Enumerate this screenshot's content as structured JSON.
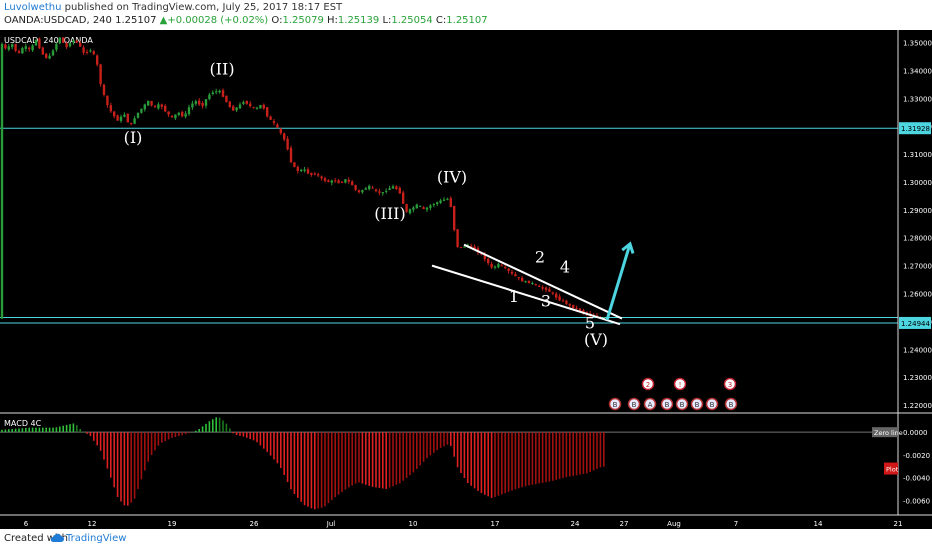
{
  "header": {
    "user": "Luvolwethu",
    "published": " published on TradingView.com, July 25, 2017 18:17 EST",
    "symbol_line": "OANDA:USDCAD, 240 ",
    "last": "1.25107",
    "change": "+0.00028 (+0.02%)",
    "ohlc": [
      "O:",
      "1.25079",
      " H:",
      "1.25139",
      " L:",
      "1.25054",
      " C:",
      "1.25107"
    ]
  },
  "footer": {
    "created_with": "Created with",
    "brand": "TradingView"
  },
  "colors": {
    "background": "#000000",
    "bull": "#2a9b3a",
    "bear": "#c8201a",
    "hline": "#4dd6e0",
    "arrow": "#4dd6e0",
    "text": "#ffffff"
  },
  "chart_data": [
    {
      "type": "candlestick",
      "title": "USDCAD, 240, OANDA",
      "xticks": [
        "6",
        "12",
        "19",
        "26",
        "Jul",
        "10",
        "17",
        "24",
        "27",
        "Aug",
        "7",
        "14",
        "21"
      ],
      "ylim": [
        1.2175,
        1.3545
      ],
      "yticks": [
        "1.35000",
        "1.34000",
        "1.33000",
        "1.32000",
        "1.31000",
        "1.30000",
        "1.29000",
        "1.28000",
        "1.27000",
        "1.26000",
        "1.25000",
        "1.24000",
        "1.23000",
        "1.22000"
      ],
      "price_path": [
        [
          0,
          1.3505
        ],
        [
          6,
          1.3475
        ],
        [
          12,
          1.3495
        ],
        [
          18,
          1.3455
        ],
        [
          24,
          1.349
        ],
        [
          30,
          1.3472
        ],
        [
          36,
          1.351
        ],
        [
          42,
          1.346
        ],
        [
          48,
          1.344
        ],
        [
          54,
          1.348
        ],
        [
          60,
          1.352
        ],
        [
          66,
          1.348
        ],
        [
          72,
          1.351
        ],
        [
          78,
          1.3498
        ],
        [
          84,
          1.346
        ],
        [
          90,
          1.3475
        ],
        [
          96,
          1.3445
        ],
        [
          100,
          1.336
        ],
        [
          106,
          1.3285
        ],
        [
          112,
          1.3245
        ],
        [
          118,
          1.322
        ],
        [
          124,
          1.3245
        ],
        [
          130,
          1.3198
        ],
        [
          136,
          1.324
        ],
        [
          142,
          1.3265
        ],
        [
          148,
          1.329
        ],
        [
          154,
          1.3265
        ],
        [
          160,
          1.328
        ],
        [
          166,
          1.325
        ],
        [
          172,
          1.323
        ],
        [
          178,
          1.325
        ],
        [
          184,
          1.3232
        ],
        [
          190,
          1.3275
        ],
        [
          196,
          1.329
        ],
        [
          202,
          1.327
        ],
        [
          208,
          1.331
        ],
        [
          214,
          1.3325
        ],
        [
          220,
          1.3325
        ],
        [
          226,
          1.329
        ],
        [
          232,
          1.3255
        ],
        [
          238,
          1.327
        ],
        [
          244,
          1.329
        ],
        [
          250,
          1.3272
        ],
        [
          256,
          1.3262
        ],
        [
          262,
          1.328
        ],
        [
          268,
          1.323
        ],
        [
          274,
          1.321
        ],
        [
          280,
          1.318
        ],
        [
          286,
          1.314
        ],
        [
          292,
          1.306
        ],
        [
          298,
          1.304
        ],
        [
          304,
          1.3045
        ],
        [
          310,
          1.3025
        ],
        [
          316,
          1.303
        ],
        [
          322,
          1.301
        ],
        [
          328,
          1.3
        ],
        [
          334,
          1.3005
        ],
        [
          340,
          1.2995
        ],
        [
          346,
          1.301
        ],
        [
          352,
          1.299
        ],
        [
          358,
          1.296
        ],
        [
          364,
          1.2975
        ],
        [
          370,
          1.2985
        ],
        [
          376,
          1.2965
        ],
        [
          382,
          1.296
        ],
        [
          388,
          1.2975
        ],
        [
          394,
          1.2985
        ],
        [
          400,
          1.296
        ],
        [
          406,
          1.289
        ],
        [
          412,
          1.2905
        ],
        [
          418,
          1.292
        ],
        [
          424,
          1.29
        ],
        [
          430,
          1.2915
        ],
        [
          436,
          1.2925
        ],
        [
          442,
          1.2935
        ],
        [
          448,
          1.294
        ],
        [
          452,
          1.29
        ],
        [
          456,
          1.277
        ],
        [
          462,
          1.2765
        ],
        [
          468,
          1.2775
        ],
        [
          474,
          1.276
        ],
        [
          480,
          1.2745
        ],
        [
          486,
          1.272
        ],
        [
          492,
          1.269
        ],
        [
          498,
          1.2705
        ],
        [
          504,
          1.2695
        ],
        [
          510,
          1.2675
        ],
        [
          516,
          1.266
        ],
        [
          522,
          1.2645
        ],
        [
          528,
          1.264
        ],
        [
          534,
          1.2635
        ],
        [
          540,
          1.262
        ],
        [
          546,
          1.2615
        ],
        [
          552,
          1.26
        ],
        [
          558,
          1.258
        ],
        [
          564,
          1.257
        ],
        [
          570,
          1.2555
        ],
        [
          576,
          1.2545
        ],
        [
          582,
          1.2535
        ],
        [
          588,
          1.2525
        ],
        [
          594,
          1.2518
        ],
        [
          600,
          1.2512
        ],
        [
          606,
          1.251
        ]
      ],
      "hlines": [
        {
          "value": 1.31928,
          "label": "1.31928"
        },
        {
          "value": 1.2514,
          "label": ""
        },
        {
          "value": 1.24944,
          "label": "1.24944"
        }
      ],
      "annotations": [
        {
          "text": "(I)",
          "at": [
            133,
            1.314
          ]
        },
        {
          "text": "(II)",
          "at": [
            222,
            1.3385
          ]
        },
        {
          "text": "(III)",
          "at": [
            390,
            1.2868
          ]
        },
        {
          "text": "(IV)",
          "at": [
            452,
            1.2998
          ]
        },
        {
          "text": "(V)",
          "at": [
            596,
            1.2416
          ]
        },
        {
          "text": "1",
          "at": [
            514,
            1.257
          ]
        },
        {
          "text": "2",
          "at": [
            540,
            1.2712
          ]
        },
        {
          "text": "3",
          "at": [
            546,
            1.2554
          ]
        },
        {
          "text": "4",
          "at": [
            565,
            1.2675
          ]
        },
        {
          "text": "5",
          "at": [
            590,
            1.2474
          ]
        }
      ],
      "wedge": {
        "upper": [
          [
            464,
            1.2775
          ],
          [
            622,
            1.251
          ]
        ],
        "lower": [
          [
            432,
            1.27
          ],
          [
            620,
            1.249
          ]
        ]
      },
      "arrow": {
        "from": [
          607,
          1.2505
        ],
        "to": [
          630,
          1.2778
        ]
      },
      "event_icons": [
        {
          "x": 615,
          "label": "B"
        },
        {
          "x": 634,
          "label": "B"
        },
        {
          "x": 650,
          "label": "A"
        },
        {
          "x": 667,
          "label": "B"
        },
        {
          "x": 682,
          "label": "B"
        },
        {
          "x": 697,
          "label": "B"
        },
        {
          "x": 712,
          "label": "B"
        },
        {
          "x": 731,
          "label": "B"
        }
      ],
      "event_badges": [
        {
          "x": 648,
          "label": "2"
        },
        {
          "x": 680,
          "label": "!"
        },
        {
          "x": 730,
          "label": "3"
        }
      ]
    },
    {
      "type": "bar",
      "title": "MACD 4C",
      "ylim": [
        -0.0072,
        0.0016
      ],
      "yticks": [
        "0.0000",
        "-0.0020",
        "-0.0040",
        "-0.0060"
      ],
      "zero_label": "Zero line",
      "plot_label": "Plot",
      "histogram": [
        [
          0,
          0.0002
        ],
        [
          30,
          0.0004
        ],
        [
          55,
          0.0004
        ],
        [
          75,
          0.0008
        ],
        [
          82,
          0.0001
        ],
        [
          90,
          -0.0003
        ],
        [
          100,
          -0.0015
        ],
        [
          110,
          -0.0038
        ],
        [
          118,
          -0.0058
        ],
        [
          126,
          -0.0066
        ],
        [
          134,
          -0.006
        ],
        [
          142,
          -0.004
        ],
        [
          150,
          -0.0022
        ],
        [
          160,
          -0.001
        ],
        [
          172,
          -0.0005
        ],
        [
          185,
          -0.0002
        ],
        [
          198,
          0.0002
        ],
        [
          210,
          0.001
        ],
        [
          218,
          0.0014
        ],
        [
          226,
          0.0008
        ],
        [
          234,
          -0.0002
        ],
        [
          244,
          -0.0004
        ],
        [
          256,
          -0.0008
        ],
        [
          268,
          -0.0018
        ],
        [
          280,
          -0.003
        ],
        [
          292,
          -0.0052
        ],
        [
          304,
          -0.0064
        ],
        [
          314,
          -0.0068
        ],
        [
          324,
          -0.0066
        ],
        [
          334,
          -0.0058
        ],
        [
          346,
          -0.005
        ],
        [
          358,
          -0.0044
        ],
        [
          372,
          -0.0048
        ],
        [
          386,
          -0.005
        ],
        [
          400,
          -0.0045
        ],
        [
          414,
          -0.0035
        ],
        [
          428,
          -0.0022
        ],
        [
          440,
          -0.0014
        ],
        [
          450,
          -0.001
        ],
        [
          458,
          -0.0032
        ],
        [
          468,
          -0.0045
        ],
        [
          480,
          -0.0053
        ],
        [
          492,
          -0.0058
        ],
        [
          504,
          -0.0054
        ],
        [
          516,
          -0.005
        ],
        [
          528,
          -0.0047
        ],
        [
          540,
          -0.0045
        ],
        [
          552,
          -0.0043
        ],
        [
          564,
          -0.004
        ],
        [
          576,
          -0.0038
        ],
        [
          588,
          -0.0036
        ],
        [
          600,
          -0.0031
        ],
        [
          606,
          -0.003
        ]
      ]
    }
  ]
}
